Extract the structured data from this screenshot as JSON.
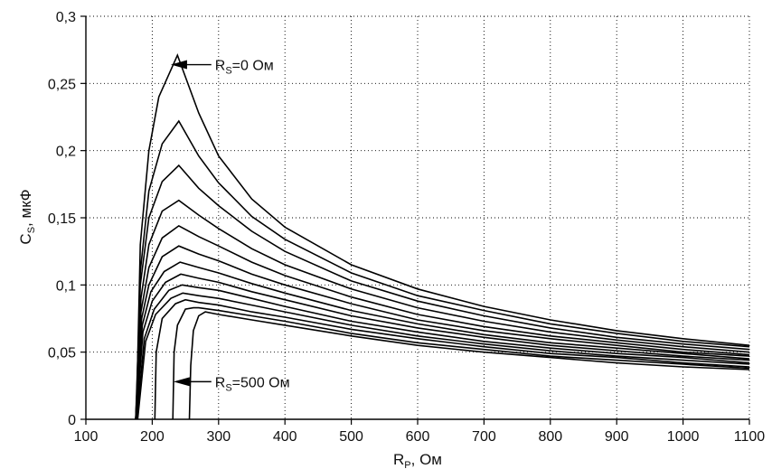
{
  "chart_data": {
    "type": "line",
    "xlabel": {
      "main": "R",
      "sub": "P",
      "tail": ", Ом"
    },
    "ylabel": {
      "main": "C",
      "sub": "S",
      "tail": ", мкФ"
    },
    "xlim": [
      100,
      1100
    ],
    "ylim": [
      0,
      0.3
    ],
    "x_ticks": [
      100,
      200,
      300,
      400,
      500,
      600,
      700,
      800,
      900,
      1000,
      1100
    ],
    "y_ticks": [
      0,
      0.05,
      0.1,
      0.15,
      0.2,
      0.25,
      0.3
    ],
    "x_tick_labels": [
      "100",
      "200",
      "300",
      "400",
      "500",
      "600",
      "700",
      "800",
      "900",
      "1000",
      "1100"
    ],
    "y_tick_labels": [
      "0",
      "0,05",
      "0,1",
      "0,15",
      "0,2",
      "0,25",
      "0,3"
    ],
    "grid": true,
    "annotations": [
      {
        "main": "R",
        "sub": "S",
        "tail": "=0 Ом",
        "x": 270,
        "y": 0.264,
        "arrow_to_x": 228
      },
      {
        "main": "R",
        "sub": "S",
        "tail": "=500 Ом",
        "x": 270,
        "y": 0.028,
        "arrow_to_x": 232
      }
    ],
    "series": [
      {
        "values": [
          [
            176,
            0
          ],
          [
            182,
            0.13
          ],
          [
            195,
            0.2
          ],
          [
            210,
            0.24
          ],
          [
            238,
            0.271
          ],
          [
            270,
            0.228
          ],
          [
            300,
            0.196
          ],
          [
            350,
            0.164
          ],
          [
            400,
            0.143
          ],
          [
            500,
            0.115
          ],
          [
            600,
            0.097
          ],
          [
            700,
            0.084
          ],
          [
            800,
            0.074
          ],
          [
            900,
            0.066
          ],
          [
            1000,
            0.06
          ],
          [
            1100,
            0.055
          ]
        ]
      },
      {
        "values": [
          [
            176,
            0
          ],
          [
            182,
            0.11
          ],
          [
            195,
            0.17
          ],
          [
            215,
            0.205
          ],
          [
            240,
            0.222
          ],
          [
            270,
            0.196
          ],
          [
            300,
            0.176
          ],
          [
            350,
            0.151
          ],
          [
            400,
            0.134
          ],
          [
            500,
            0.109
          ],
          [
            600,
            0.092
          ],
          [
            700,
            0.081
          ],
          [
            800,
            0.071
          ],
          [
            900,
            0.064
          ],
          [
            1000,
            0.058
          ],
          [
            1100,
            0.054
          ]
        ]
      },
      {
        "values": [
          [
            175,
            0
          ],
          [
            182,
            0.1
          ],
          [
            195,
            0.15
          ],
          [
            215,
            0.177
          ],
          [
            240,
            0.189
          ],
          [
            270,
            0.172
          ],
          [
            300,
            0.159
          ],
          [
            350,
            0.14
          ],
          [
            400,
            0.125
          ],
          [
            500,
            0.103
          ],
          [
            600,
            0.088
          ],
          [
            700,
            0.077
          ],
          [
            800,
            0.068
          ],
          [
            900,
            0.061
          ],
          [
            1000,
            0.056
          ],
          [
            1100,
            0.052
          ]
        ]
      },
      {
        "values": [
          [
            175,
            0
          ],
          [
            183,
            0.09
          ],
          [
            195,
            0.13
          ],
          [
            215,
            0.155
          ],
          [
            240,
            0.163
          ],
          [
            270,
            0.152
          ],
          [
            300,
            0.142
          ],
          [
            350,
            0.127
          ],
          [
            400,
            0.115
          ],
          [
            500,
            0.097
          ],
          [
            600,
            0.083
          ],
          [
            700,
            0.073
          ],
          [
            800,
            0.065
          ],
          [
            900,
            0.059
          ],
          [
            1000,
            0.054
          ],
          [
            1100,
            0.05
          ]
        ]
      },
      {
        "values": [
          [
            175,
            0
          ],
          [
            183,
            0.08
          ],
          [
            195,
            0.113
          ],
          [
            215,
            0.135
          ],
          [
            240,
            0.144
          ],
          [
            270,
            0.136
          ],
          [
            300,
            0.129
          ],
          [
            350,
            0.117
          ],
          [
            400,
            0.107
          ],
          [
            500,
            0.091
          ],
          [
            600,
            0.078
          ],
          [
            700,
            0.069
          ],
          [
            800,
            0.062
          ],
          [
            900,
            0.057
          ],
          [
            1000,
            0.052
          ],
          [
            1100,
            0.048
          ]
        ]
      },
      {
        "values": [
          [
            175,
            0
          ],
          [
            184,
            0.075
          ],
          [
            195,
            0.1
          ],
          [
            215,
            0.121
          ],
          [
            240,
            0.129
          ],
          [
            270,
            0.123
          ],
          [
            300,
            0.118
          ],
          [
            350,
            0.108
          ],
          [
            400,
            0.1
          ],
          [
            500,
            0.086
          ],
          [
            600,
            0.074
          ],
          [
            700,
            0.066
          ],
          [
            800,
            0.06
          ],
          [
            900,
            0.055
          ],
          [
            1000,
            0.05
          ],
          [
            1100,
            0.047
          ]
        ]
      },
      {
        "values": [
          [
            175,
            0
          ],
          [
            185,
            0.07
          ],
          [
            198,
            0.095
          ],
          [
            218,
            0.11
          ],
          [
            242,
            0.117
          ],
          [
            270,
            0.113
          ],
          [
            300,
            0.109
          ],
          [
            350,
            0.101
          ],
          [
            400,
            0.094
          ],
          [
            500,
            0.081
          ],
          [
            600,
            0.071
          ],
          [
            700,
            0.063
          ],
          [
            800,
            0.057
          ],
          [
            900,
            0.053
          ],
          [
            1000,
            0.049
          ],
          [
            1100,
            0.045
          ]
        ]
      },
      {
        "values": [
          [
            176,
            0
          ],
          [
            186,
            0.065
          ],
          [
            200,
            0.088
          ],
          [
            220,
            0.102
          ],
          [
            243,
            0.108
          ],
          [
            270,
            0.105
          ],
          [
            300,
            0.102
          ],
          [
            350,
            0.095
          ],
          [
            400,
            0.089
          ],
          [
            500,
            0.077
          ],
          [
            600,
            0.068
          ],
          [
            700,
            0.061
          ],
          [
            800,
            0.055
          ],
          [
            900,
            0.051
          ],
          [
            1000,
            0.047
          ],
          [
            1100,
            0.044
          ]
        ]
      },
      {
        "values": [
          [
            177,
            0
          ],
          [
            188,
            0.06
          ],
          [
            203,
            0.082
          ],
          [
            225,
            0.096
          ],
          [
            245,
            0.1
          ],
          [
            270,
            0.098
          ],
          [
            300,
            0.096
          ],
          [
            350,
            0.09
          ],
          [
            400,
            0.084
          ],
          [
            500,
            0.073
          ],
          [
            600,
            0.065
          ],
          [
            700,
            0.058
          ],
          [
            800,
            0.053
          ],
          [
            900,
            0.049
          ],
          [
            1000,
            0.046
          ],
          [
            1100,
            0.042
          ]
        ]
      },
      {
        "values": [
          [
            178,
            0
          ],
          [
            190,
            0.058
          ],
          [
            205,
            0.078
          ],
          [
            228,
            0.09
          ],
          [
            246,
            0.094
          ],
          [
            270,
            0.092
          ],
          [
            300,
            0.09
          ],
          [
            350,
            0.085
          ],
          [
            400,
            0.08
          ],
          [
            500,
            0.07
          ],
          [
            600,
            0.062
          ],
          [
            700,
            0.056
          ],
          [
            800,
            0.051
          ],
          [
            900,
            0.047
          ],
          [
            1000,
            0.044
          ],
          [
            1100,
            0.041
          ]
        ]
      },
      {
        "values": [
          [
            204,
            0
          ],
          [
            206,
            0.05
          ],
          [
            215,
            0.075
          ],
          [
            235,
            0.086
          ],
          [
            250,
            0.089
          ],
          [
            270,
            0.087
          ],
          [
            300,
            0.085
          ],
          [
            350,
            0.08
          ],
          [
            400,
            0.076
          ],
          [
            500,
            0.067
          ],
          [
            600,
            0.06
          ],
          [
            700,
            0.054
          ],
          [
            800,
            0.049
          ],
          [
            900,
            0.046
          ],
          [
            1000,
            0.042
          ],
          [
            1100,
            0.039
          ]
        ]
      },
      {
        "values": [
          [
            231,
            0
          ],
          [
            233,
            0.05
          ],
          [
            238,
            0.07
          ],
          [
            250,
            0.082
          ],
          [
            262,
            0.083
          ],
          [
            270,
            0.083
          ],
          [
            300,
            0.081
          ],
          [
            350,
            0.077
          ],
          [
            400,
            0.073
          ],
          [
            500,
            0.064
          ],
          [
            600,
            0.057
          ],
          [
            700,
            0.052
          ],
          [
            800,
            0.047
          ],
          [
            900,
            0.044
          ],
          [
            1000,
            0.041
          ],
          [
            1100,
            0.038
          ]
        ]
      },
      {
        "values": [
          [
            256,
            0
          ],
          [
            258,
            0.04
          ],
          [
            262,
            0.066
          ],
          [
            270,
            0.077
          ],
          [
            280,
            0.08
          ],
          [
            300,
            0.078
          ],
          [
            350,
            0.074
          ],
          [
            400,
            0.07
          ],
          [
            500,
            0.062
          ],
          [
            600,
            0.055
          ],
          [
            700,
            0.05
          ],
          [
            800,
            0.046
          ],
          [
            900,
            0.042
          ],
          [
            1000,
            0.039
          ],
          [
            1100,
            0.037
          ]
        ]
      }
    ]
  }
}
